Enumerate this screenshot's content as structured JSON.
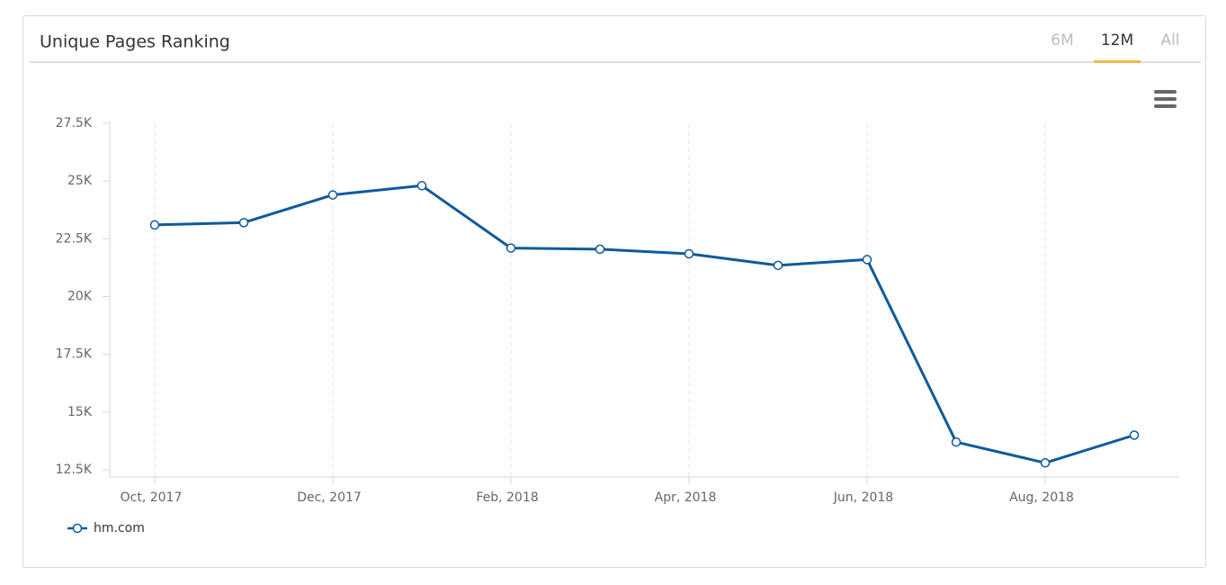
{
  "header": {
    "title": "Unique Pages Ranking",
    "tabs": [
      "6M",
      "12M",
      "All"
    ],
    "active_tab": 1
  },
  "chart_data": {
    "type": "line",
    "categories": [
      "Oct, 2017",
      null,
      "Dec, 2017",
      null,
      "Feb, 2018",
      null,
      "Apr, 2018",
      null,
      "Jun, 2018",
      null,
      "Aug, 2018",
      null
    ],
    "series": [
      {
        "name": "hm.com",
        "color": "#0f5a9c",
        "values": [
          23100,
          23200,
          24400,
          24800,
          22100,
          22050,
          21850,
          21350,
          21600,
          13700,
          12800,
          14000
        ]
      }
    ],
    "ylim": [
      12500,
      27500
    ],
    "yticks": [
      {
        "value": 12500,
        "label": "12.5K"
      },
      {
        "value": 15000,
        "label": "15K"
      },
      {
        "value": 17500,
        "label": "17.5K"
      },
      {
        "value": 20000,
        "label": "20K"
      },
      {
        "value": 22500,
        "label": "22.5K"
      },
      {
        "value": 25000,
        "label": "25K"
      },
      {
        "value": 27500,
        "label": "27.5K"
      }
    ],
    "grid": true
  }
}
